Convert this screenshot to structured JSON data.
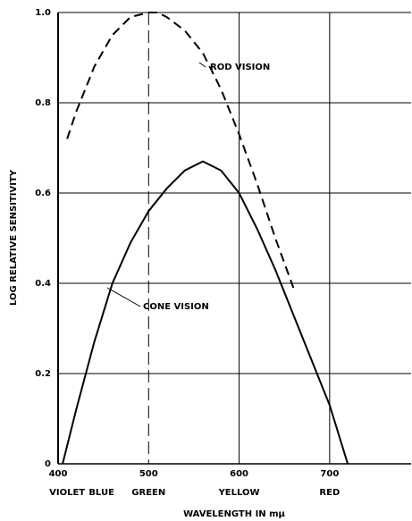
{
  "chart_data": {
    "type": "line",
    "xlabel": "WAVELENGTH IN mμ",
    "ylabel": "LOG RELATIVE SENSITIVITY",
    "xlim": [
      400,
      790
    ],
    "ylim": [
      0,
      1
    ],
    "xticks": [
      400,
      500,
      600,
      700
    ],
    "yticks": [
      0,
      0.2,
      0.4,
      0.6,
      {
        "value": 0.8,
        "label": "0.8"
      },
      {
        "value": 1,
        "label": "1.0"
      }
    ],
    "grid": true,
    "series": [
      {
        "name": "ROD VISION",
        "color": "#000000",
        "dashed": true,
        "x": [
          410,
          420,
          440,
          460,
          480,
          500,
          510,
          520,
          540,
          560,
          580,
          600,
          620,
          640,
          660
        ],
        "values": [
          0.72,
          0.78,
          0.88,
          0.95,
          0.99,
          1.0,
          1.0,
          0.99,
          0.96,
          0.91,
          0.83,
          0.73,
          0.62,
          0.5,
          0.39
        ]
      },
      {
        "name": "CONE VISION",
        "color": "#000000",
        "dashed": false,
        "x": [
          405,
          420,
          440,
          460,
          480,
          500,
          520,
          540,
          560,
          580,
          600,
          620,
          640,
          660,
          680,
          700,
          720
        ],
        "values": [
          0,
          0.12,
          0.27,
          0.4,
          0.49,
          0.56,
          0.61,
          0.65,
          0.67,
          0.65,
          0.6,
          0.52,
          0.43,
          0.33,
          0.23,
          0.13,
          0
        ]
      }
    ],
    "bands": [
      {
        "label": "VIOLET",
        "x": 410
      },
      {
        "label": "BLUE",
        "x": 448
      },
      {
        "label": "GREEN",
        "x": 500
      },
      {
        "label": "YELLOW",
        "x": 600
      },
      {
        "label": "RED",
        "x": 700
      }
    ]
  }
}
